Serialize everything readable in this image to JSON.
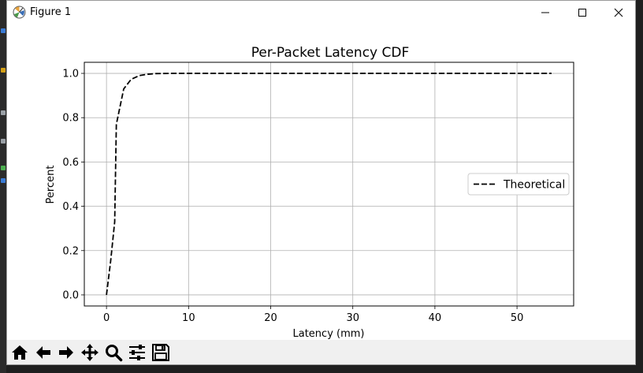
{
  "window": {
    "title": "Figure 1"
  },
  "toolbar": {
    "buttons": [
      {
        "name": "home-icon"
      },
      {
        "name": "back-arrow-icon"
      },
      {
        "name": "forward-arrow-icon"
      },
      {
        "name": "pan-move-icon"
      },
      {
        "name": "zoom-magnifier-icon"
      },
      {
        "name": "configure-subplots-icon"
      },
      {
        "name": "save-floppy-icon"
      }
    ]
  },
  "chart_data": {
    "type": "line",
    "title": "Per-Packet Latency CDF",
    "xlabel": "Latency (mm)",
    "ylabel": "Percent",
    "xlim": [
      -2.7,
      56.9
    ],
    "ylim": [
      -0.05,
      1.05
    ],
    "xticks": [
      "0",
      "10",
      "20",
      "30",
      "40",
      "50"
    ],
    "xtick_values": [
      0,
      10,
      20,
      30,
      40,
      50
    ],
    "yticks": [
      "0.0",
      "0.2",
      "0.4",
      "0.6",
      "0.8",
      "1.0"
    ],
    "ytick_values": [
      0.0,
      0.2,
      0.4,
      0.6,
      0.8,
      1.0
    ],
    "grid": true,
    "legend_position": "center-right",
    "series": [
      {
        "name": "Theoretical",
        "style": "dashed",
        "color": "#000000",
        "x": [
          0,
          0.5,
          1.0,
          1.2,
          2.1,
          3.0,
          4.0,
          5.0,
          6.0,
          8.0,
          10,
          20,
          30,
          40,
          50,
          54.2
        ],
        "y": [
          0.0,
          0.15,
          0.33,
          0.77,
          0.93,
          0.973,
          0.99,
          0.996,
          0.999,
          1.0,
          1.0,
          1.0,
          1.0,
          1.0,
          1.0,
          1.0
        ]
      }
    ]
  }
}
